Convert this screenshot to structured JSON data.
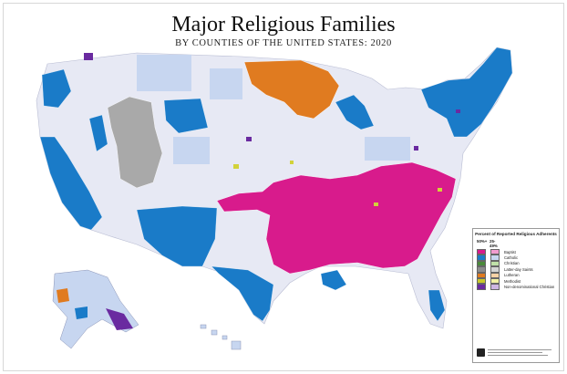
{
  "title": "Major Religious Families",
  "subtitle": "BY COUNTIES OF THE UNITED STATES: 2020",
  "legend": {
    "heading": "Percent of Reported Religious Adherents",
    "col_major": "50%+",
    "col_minor": "25-49%",
    "items": [
      {
        "label": "Baptist",
        "major": "#d81b8c",
        "minor": "#f29ccf"
      },
      {
        "label": "Catholic",
        "major": "#1a7bc8",
        "minor": "#c7d6f0"
      },
      {
        "label": "Christian",
        "major": "#4a8a3a",
        "minor": "#bfe0a8"
      },
      {
        "label": "Latter-day Saints",
        "major": "#8c8c8c",
        "minor": "#d4d4d4"
      },
      {
        "label": "Lutheran",
        "major": "#e07b20",
        "minor": "#f7d2a6"
      },
      {
        "label": "Methodist",
        "major": "#c9c92a",
        "minor": "#f1f1a4"
      },
      {
        "label": "Non-denominational Christian",
        "major": "#6a2aa0",
        "minor": "#cdb6e3"
      }
    ]
  },
  "colors": {
    "baptist": "#d81b8c",
    "baptist_light": "#f29ccf",
    "catholic": "#1a7bc8",
    "catholic_light": "#c7d6f0",
    "lds": "#a9a9a9",
    "lutheran": "#e07b20",
    "methodist": "#d2d23a",
    "nondenom": "#6a2aa0",
    "mixed": "#e9e9f4",
    "state_lines": "#ffffff"
  }
}
